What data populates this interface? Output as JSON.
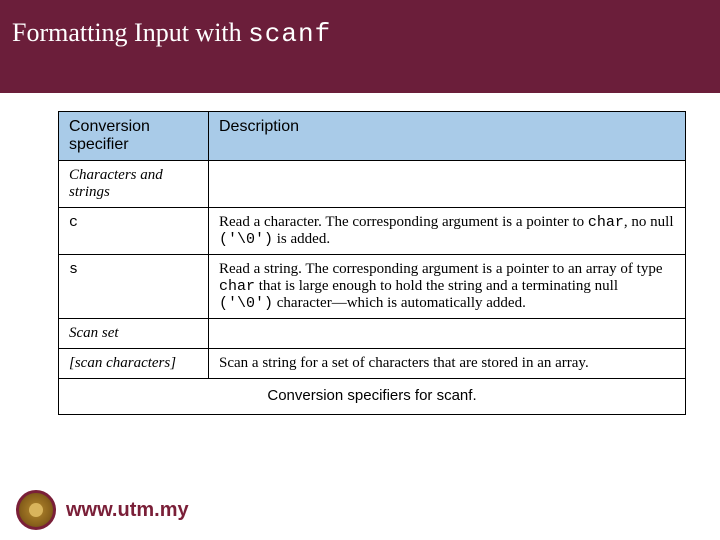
{
  "title": {
    "prefix": "Formatting Input with ",
    "code": "scanf"
  },
  "table": {
    "headers": {
      "col1": "Conversion specifier",
      "col2": "Description"
    },
    "section1": "Characters and strings",
    "row_c": {
      "spec": "c",
      "desc_pre": "Read a character. The corresponding argument is a pointer to ",
      "code1": "char",
      "mid": ", no null ",
      "code2": "('\\0')",
      "post": " is added."
    },
    "row_s": {
      "spec": "s",
      "desc_pre": "Read a string. The corresponding argument is a pointer to an array of type ",
      "code1": "char",
      "mid": " that is large enough to hold the string and a terminating null ",
      "code2": "('\\0')",
      "post": " character—which is automatically added."
    },
    "section2": "Scan set",
    "row_scan": {
      "spec": "[scan characters]",
      "desc": "Scan a string for a set of characters that are stored in an array."
    },
    "caption": "Conversion specifiers for scanf."
  },
  "footer": {
    "url": "www.utm.my"
  }
}
